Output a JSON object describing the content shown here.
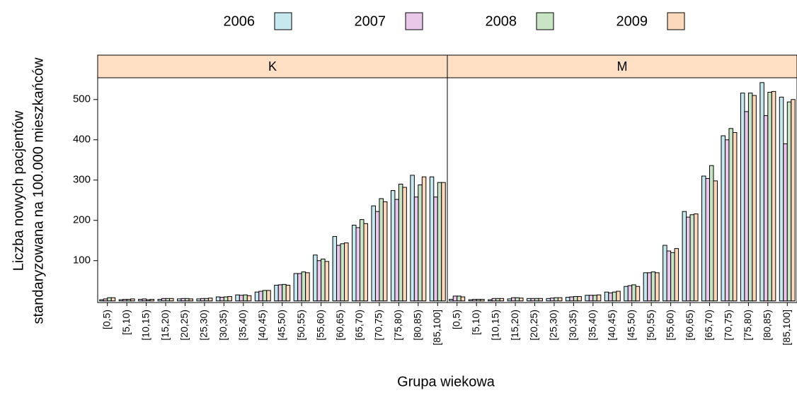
{
  "chart_data": {
    "type": "bar",
    "y_label": [
      "Liczba nowych pacjentów",
      "standaryzowana na 100.000 mieszkańców"
    ],
    "x_label": "Grupa wiekowa",
    "categories": [
      "[0,5)",
      "[5,10)",
      "[10,15)",
      "[15,20)",
      "[20,25)",
      "[25,30)",
      "[30,35)",
      "[35,40)",
      "[40,45)",
      "[45,50)",
      "[50,55)",
      "[55,60)",
      "[60,65)",
      "[65,70)",
      "[70,75)",
      "[75,80)",
      "[80,85)",
      "[85,100]"
    ],
    "series": [
      {
        "name": "2006",
        "color": "#c8e8f0"
      },
      {
        "name": "2007",
        "color": "#e8c8e8"
      },
      {
        "name": "2008",
        "color": "#c8e4c4"
      },
      {
        "name": "2009",
        "color": "#fcd8bc"
      }
    ],
    "panels": [
      {
        "name": "K",
        "values": [
          [
            3,
            3,
            4,
            4,
            5,
            5,
            10,
            15,
            22,
            39,
            68,
            114,
            160,
            188,
            236,
            274,
            312,
            308
          ],
          [
            5,
            4,
            5,
            6,
            6,
            6,
            9,
            14,
            24,
            40,
            68,
            100,
            138,
            182,
            222,
            252,
            258,
            258
          ],
          [
            8,
            4,
            3,
            6,
            6,
            6,
            10,
            15,
            26,
            41,
            72,
            104,
            142,
            202,
            254,
            290,
            288,
            294
          ],
          [
            8,
            5,
            4,
            6,
            5,
            7,
            11,
            13,
            26,
            39,
            70,
            98,
            144,
            192,
            246,
            282,
            308,
            294
          ]
        ]
      },
      {
        "name": "M",
        "values": [
          [
            4,
            3,
            3,
            5,
            6,
            6,
            9,
            14,
            22,
            36,
            70,
            138,
            222,
            310,
            410,
            516,
            542,
            506
          ],
          [
            12,
            4,
            6,
            8,
            6,
            7,
            10,
            14,
            20,
            38,
            70,
            124,
            208,
            304,
            400,
            470,
            460,
            390
          ],
          [
            12,
            4,
            6,
            8,
            6,
            8,
            11,
            14,
            22,
            40,
            72,
            120,
            214,
            336,
            428,
            516,
            518,
            494
          ],
          [
            10,
            4,
            6,
            7,
            6,
            8,
            11,
            15,
            24,
            36,
            70,
            130,
            216,
            298,
            418,
            510,
            520,
            500
          ]
        ]
      }
    ],
    "ylim": [
      -4,
      554
    ],
    "yticks": [
      100,
      200,
      300,
      400,
      500
    ],
    "strip_color": "#ffe0c4"
  }
}
